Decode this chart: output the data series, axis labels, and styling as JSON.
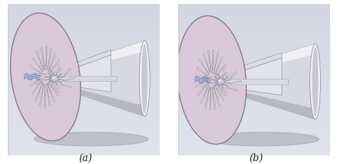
{
  "figure_width": 4.74,
  "figure_height": 2.32,
  "dpi": 100,
  "background_color": "#ffffff",
  "label_a": "(a)",
  "label_b": "(b)",
  "label_fontsize": 10,
  "label_color": "#1a1a1a",
  "panel_bg_top": "#d8dae2",
  "panel_bg_bottom": "#c0c2cc",
  "shadow_color": "#707070",
  "disk_fill": "#d8c8d8",
  "disk_edge": "#807888",
  "cone_light": "#f0f0f4",
  "cone_mid": "#d8d8e0",
  "cone_dark": "#b8b8c4",
  "cone_edge": "#909098",
  "cut_face": "#e4e4ec",
  "vane_color": "#e8e8f0",
  "vane_edge": "#909098",
  "blade_light": "#f4f4f8",
  "blade_dark": "#c0c0cc",
  "hub_color": "#d0ccd8",
  "blue_line": "#3355cc",
  "panel_border": "#cccccc"
}
